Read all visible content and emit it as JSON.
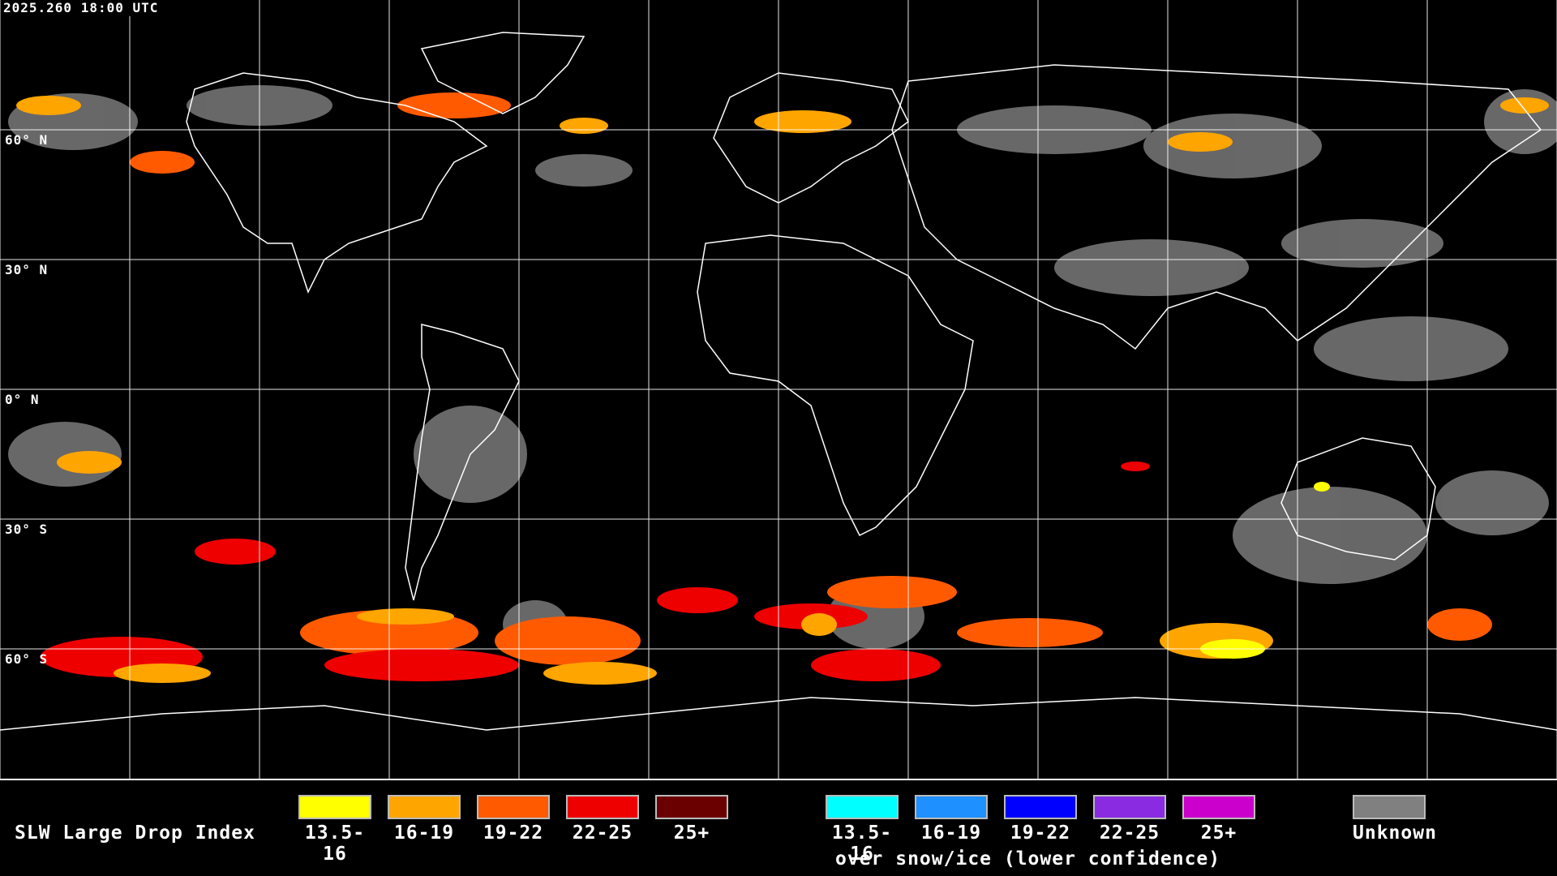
{
  "timestamp": "2025.260 18:00 UTC",
  "map": {
    "grid_color": "#ffffff",
    "coast_color": "#ffffff",
    "lat_labels": [
      "60° N",
      "30° N",
      "0° N",
      "30° S",
      "60° S"
    ]
  },
  "legend": {
    "title": "SLW Large Drop Index",
    "warm_items": [
      {
        "label": "13.5-16",
        "color": "#ffff00"
      },
      {
        "label": "16-19",
        "color": "#ffa500"
      },
      {
        "label": "19-22",
        "color": "#ff5a00"
      },
      {
        "label": "22-25",
        "color": "#ee0000"
      },
      {
        "label": "25+",
        "color": "#6b0000"
      }
    ],
    "snow_items": [
      {
        "label": "13.5-16",
        "color": "#00ffff"
      },
      {
        "label": "16-19",
        "color": "#1e90ff"
      },
      {
        "label": "19-22",
        "color": "#0000ff"
      },
      {
        "label": "22-25",
        "color": "#8a2be2"
      },
      {
        "label": "25+",
        "color": "#cc00cc"
      }
    ],
    "snow_note": "over snow/ice (lower confidence)",
    "unknown": {
      "label": "Unknown",
      "color": "#808080"
    }
  }
}
